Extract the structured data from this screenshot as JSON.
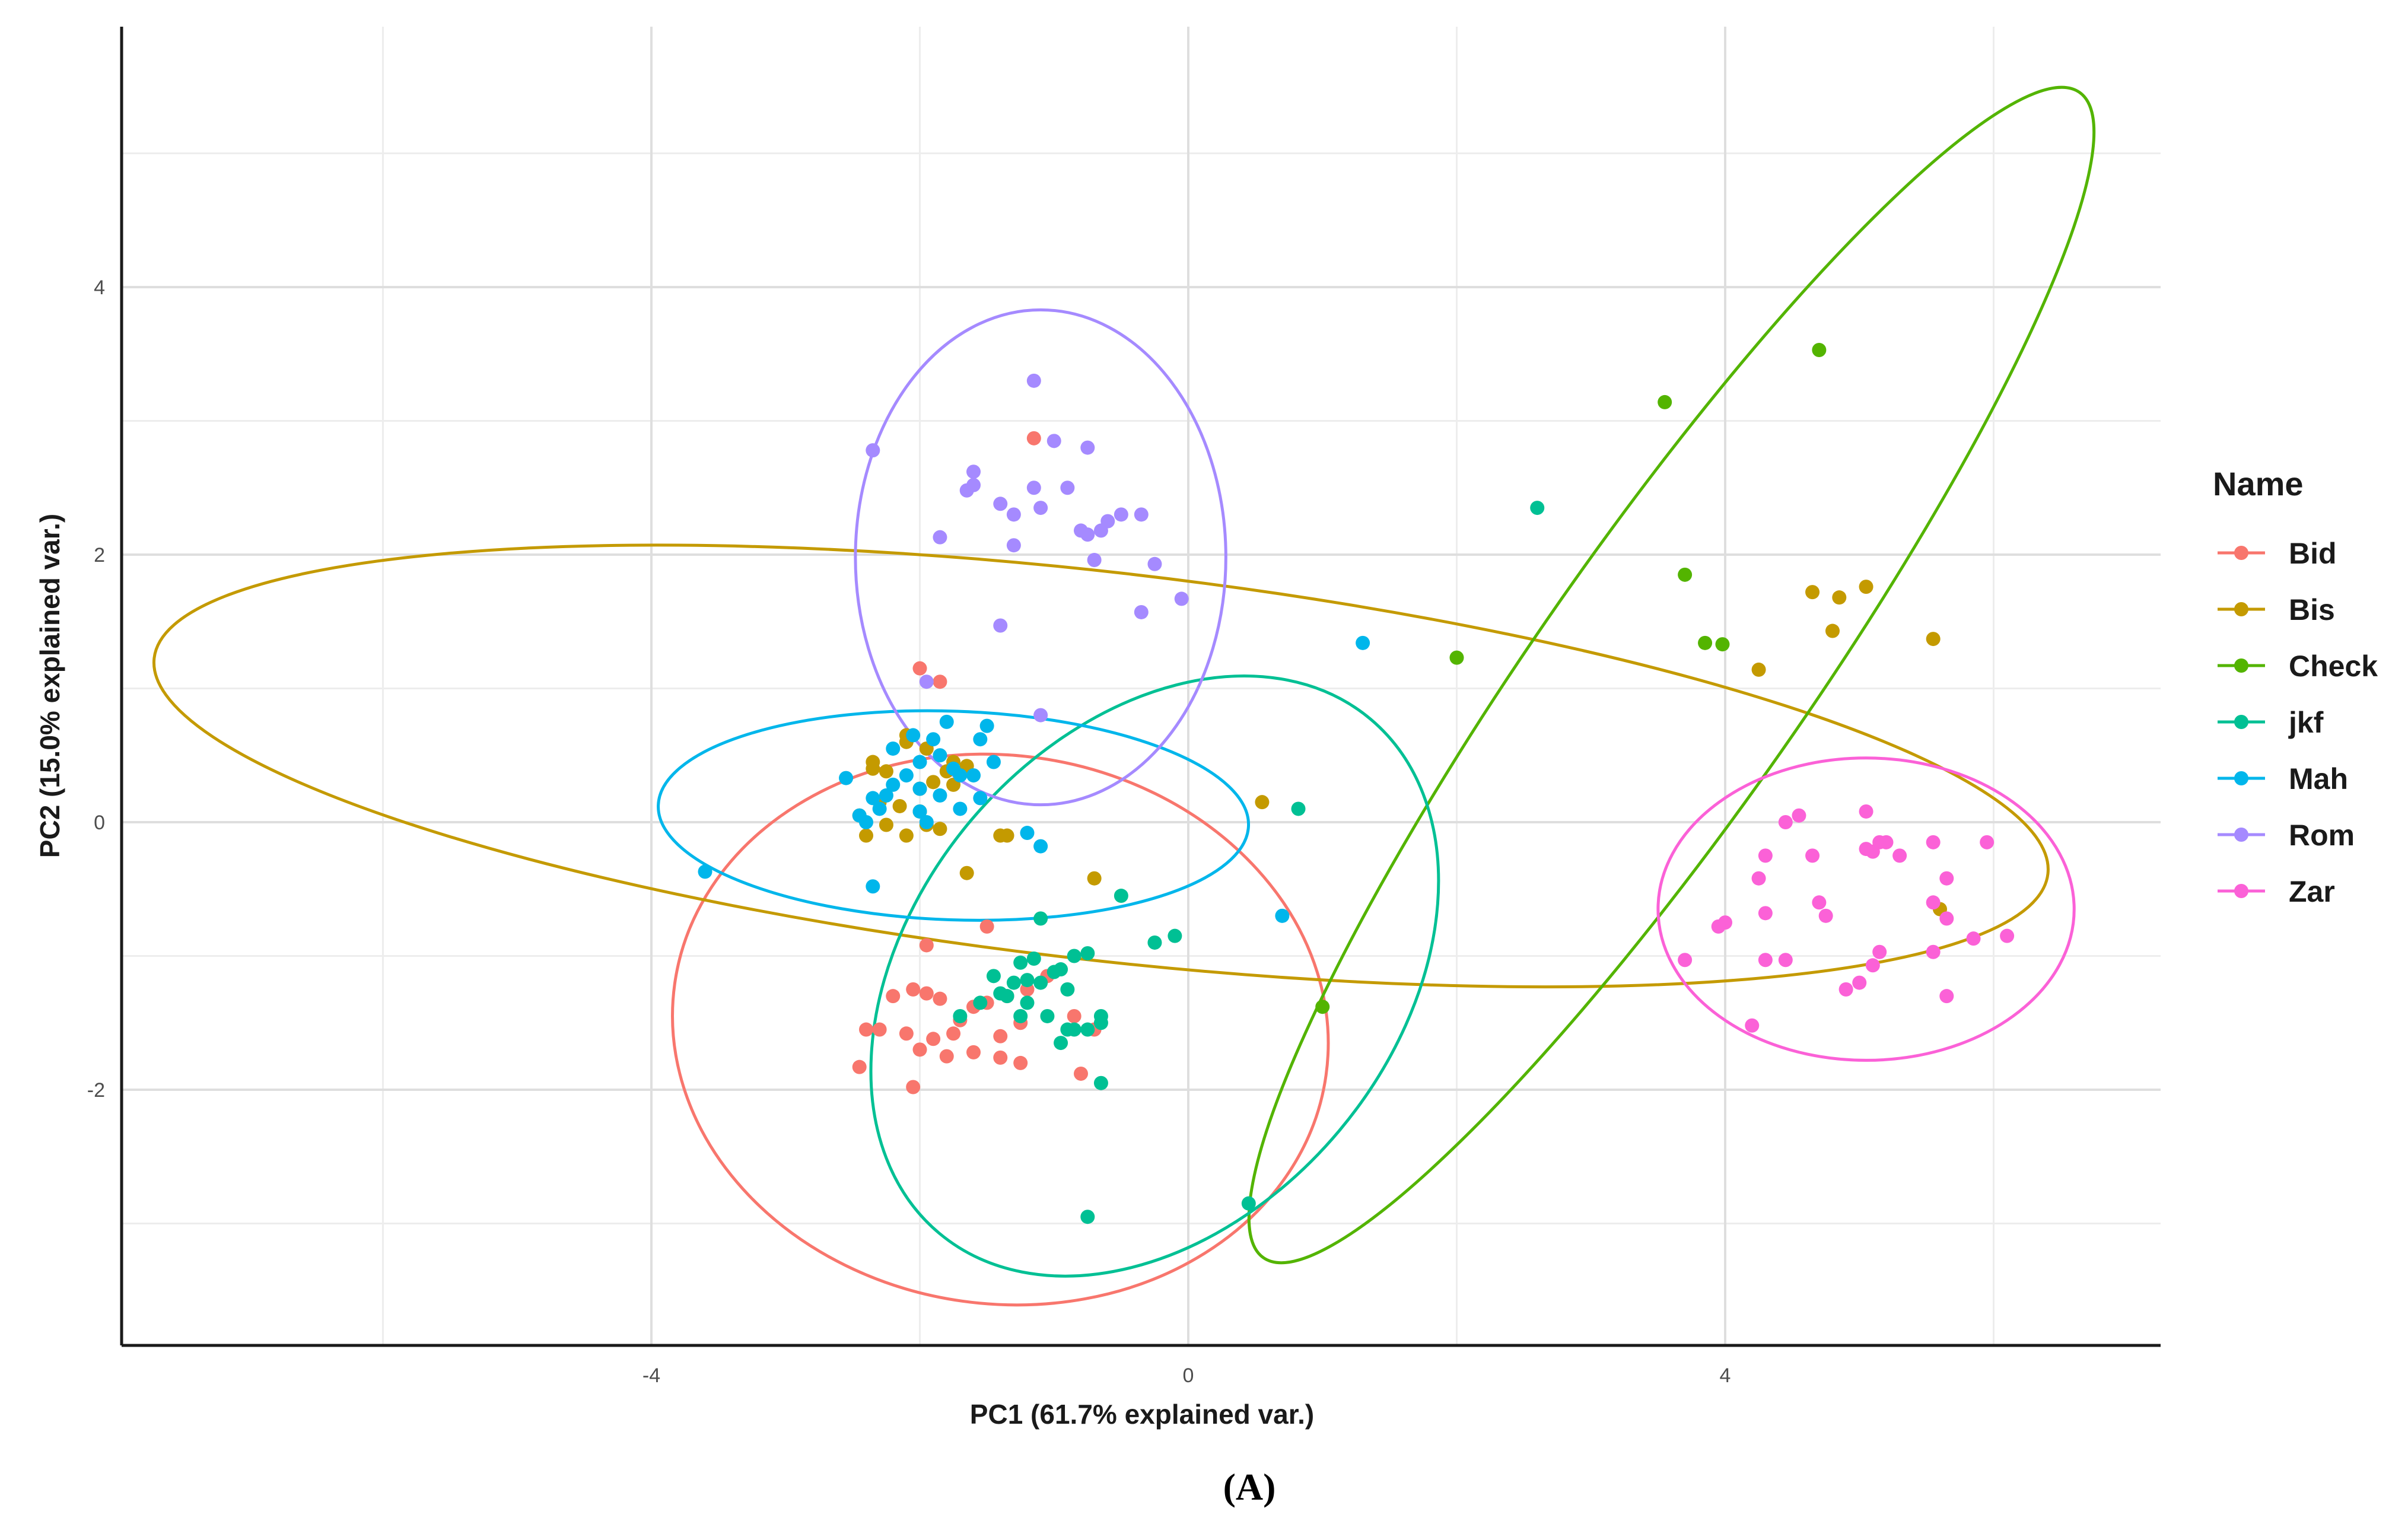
{
  "chart_data": {
    "type": "scatter",
    "subtype": "pca-biplot-with-confidence-ellipses",
    "xlabel": "PC1 (61.7% explained var.)",
    "ylabel": "PC2 (15.0% explained var.)",
    "caption": "(A)",
    "xlim": [
      -8.0,
      7.3
    ],
    "ylim": [
      -3.9,
      6.0
    ],
    "x_ticks": [
      -4,
      0,
      4
    ],
    "x_tick_labels": [
      "-4",
      "0",
      "4"
    ],
    "y_ticks": [
      -2,
      0,
      2,
      4
    ],
    "y_tick_labels": [
      "-2",
      "0",
      "2",
      "4"
    ],
    "x_minor_grid": [
      -6,
      -2,
      2,
      6
    ],
    "y_minor_grid": [
      -3,
      -1,
      1,
      3,
      5
    ],
    "grid": true,
    "legend_title": "Name",
    "legend_position": "right",
    "series": [
      {
        "name": "Bid",
        "color": "#F8766D",
        "ellipse": {
          "cx": -1.4,
          "cy": -1.55,
          "rx": 2.45,
          "ry": 2.05,
          "angle_deg": -8
        },
        "points": [
          [
            -1.15,
            2.87
          ],
          [
            -1.85,
            1.05
          ],
          [
            -2.0,
            1.15
          ],
          [
            -1.95,
            -0.92
          ],
          [
            -1.5,
            -0.78
          ],
          [
            -2.05,
            -1.25
          ],
          [
            -1.95,
            -1.28
          ],
          [
            -1.85,
            -1.32
          ],
          [
            -1.7,
            -1.48
          ],
          [
            -1.6,
            -1.38
          ],
          [
            -1.5,
            -1.35
          ],
          [
            -1.35,
            -1.3
          ],
          [
            -1.2,
            -1.25
          ],
          [
            -1.05,
            -1.15
          ],
          [
            -1.25,
            -1.5
          ],
          [
            -1.4,
            -1.6
          ],
          [
            -1.75,
            -1.58
          ],
          [
            -1.9,
            -1.62
          ],
          [
            -2.1,
            -1.58
          ],
          [
            -2.3,
            -1.55
          ],
          [
            -2.4,
            -1.55
          ],
          [
            -2.0,
            -1.7
          ],
          [
            -1.8,
            -1.75
          ],
          [
            -1.6,
            -1.72
          ],
          [
            -1.4,
            -1.76
          ],
          [
            -1.25,
            -1.8
          ],
          [
            -0.85,
            -1.45
          ],
          [
            -0.7,
            -1.55
          ],
          [
            -0.8,
            -1.88
          ],
          [
            -2.45,
            -1.83
          ],
          [
            -2.05,
            -1.98
          ],
          [
            -2.2,
            -1.3
          ]
        ]
      },
      {
        "name": "Bis",
        "color": "#C49A00",
        "ellipse": {
          "cx": -0.65,
          "cy": 0.42,
          "rx": 7.1,
          "ry": 1.45,
          "angle_deg": -6.5
        },
        "points": [
          [
            -2.35,
            0.45
          ],
          [
            -2.25,
            0.38
          ],
          [
            -2.1,
            0.6
          ],
          [
            -1.95,
            0.55
          ],
          [
            -1.8,
            0.38
          ],
          [
            -1.65,
            0.42
          ],
          [
            -2.0,
            0.25
          ],
          [
            -1.9,
            0.3
          ],
          [
            -1.75,
            0.28
          ],
          [
            -2.3,
            0.15
          ],
          [
            -2.15,
            0.12
          ],
          [
            -2.0,
            0.08
          ],
          [
            -2.45,
            0.05
          ],
          [
            -2.25,
            -0.02
          ],
          [
            -1.95,
            -0.02
          ],
          [
            -1.85,
            -0.05
          ],
          [
            -2.4,
            -0.1
          ],
          [
            -2.1,
            -0.1
          ],
          [
            -1.4,
            -0.1
          ],
          [
            -1.35,
            -0.1
          ],
          [
            -1.65,
            -0.38
          ],
          [
            -2.35,
            0.4
          ],
          [
            -2.1,
            0.65
          ],
          [
            -1.75,
            0.45
          ],
          [
            0.55,
            0.15
          ],
          [
            -0.7,
            -0.42
          ],
          [
            4.65,
            1.72
          ],
          [
            4.85,
            1.68
          ],
          [
            5.05,
            1.76
          ],
          [
            4.8,
            1.43
          ],
          [
            5.55,
            1.37
          ],
          [
            4.25,
            1.14
          ],
          [
            5.6,
            -0.65
          ]
        ]
      },
      {
        "name": "Check",
        "color": "#53B400",
        "ellipse": {
          "cx": 3.6,
          "cy": 1.1,
          "rx": 5.3,
          "ry": 1.0,
          "angle_deg": 55
        },
        "points": [
          [
            4.7,
            3.53
          ],
          [
            3.55,
            3.14
          ],
          [
            3.7,
            1.85
          ],
          [
            3.85,
            1.34
          ],
          [
            3.98,
            1.33
          ],
          [
            2.0,
            1.23
          ],
          [
            1.0,
            -1.38
          ]
        ]
      },
      {
        "name": "jkf",
        "color": "#00C094",
        "ellipse": {
          "cx": -0.25,
          "cy": -1.15,
          "rx": 2.5,
          "ry": 1.8,
          "angle_deg": 50
        },
        "points": [
          [
            2.6,
            2.35
          ],
          [
            0.82,
            0.1
          ],
          [
            -1.1,
            -0.72
          ],
          [
            -0.5,
            -0.55
          ],
          [
            -0.25,
            -0.9
          ],
          [
            -0.1,
            -0.85
          ],
          [
            -1.25,
            -1.05
          ],
          [
            -1.15,
            -1.02
          ],
          [
            -1.45,
            -1.15
          ],
          [
            -1.3,
            -1.2
          ],
          [
            -1.2,
            -1.18
          ],
          [
            -1.1,
            -1.2
          ],
          [
            -1.0,
            -1.12
          ],
          [
            -0.95,
            -1.1
          ],
          [
            -0.85,
            -1.0
          ],
          [
            -0.75,
            -0.98
          ],
          [
            -1.35,
            -1.3
          ],
          [
            -1.55,
            -1.35
          ],
          [
            -1.2,
            -1.35
          ],
          [
            -0.9,
            -1.25
          ],
          [
            -1.05,
            -1.45
          ],
          [
            -0.9,
            -1.55
          ],
          [
            -0.75,
            -1.55
          ],
          [
            -0.65,
            -1.5
          ],
          [
            -0.65,
            -1.45
          ],
          [
            -1.25,
            -1.45
          ],
          [
            -0.95,
            -1.65
          ],
          [
            -1.7,
            -1.45
          ],
          [
            -0.65,
            -1.95
          ],
          [
            -0.75,
            -2.95
          ],
          [
            0.45,
            -2.85
          ],
          [
            -0.85,
            -1.55
          ],
          [
            -1.4,
            -1.28
          ]
        ]
      },
      {
        "name": "Mah",
        "color": "#00B6EB",
        "ellipse": {
          "cx": -1.75,
          "cy": 0.05,
          "rx": 2.2,
          "ry": 0.78,
          "angle_deg": -2
        },
        "points": [
          [
            -1.8,
            0.75
          ],
          [
            -1.5,
            0.72
          ],
          [
            -2.05,
            0.65
          ],
          [
            -1.9,
            0.62
          ],
          [
            -1.55,
            0.62
          ],
          [
            -2.2,
            0.55
          ],
          [
            -1.85,
            0.5
          ],
          [
            -2.0,
            0.45
          ],
          [
            -1.75,
            0.4
          ],
          [
            -1.45,
            0.45
          ],
          [
            -1.7,
            0.35
          ],
          [
            -2.1,
            0.35
          ],
          [
            -2.55,
            0.33
          ],
          [
            -2.2,
            0.28
          ],
          [
            -2.0,
            0.25
          ],
          [
            -1.85,
            0.2
          ],
          [
            -1.55,
            0.18
          ],
          [
            -2.35,
            0.18
          ],
          [
            -2.25,
            0.2
          ],
          [
            -1.7,
            0.1
          ],
          [
            -2.0,
            0.08
          ],
          [
            -2.3,
            0.1
          ],
          [
            -2.45,
            0.05
          ],
          [
            -1.95,
            0.0
          ],
          [
            -2.4,
            0.0
          ],
          [
            -1.2,
            -0.08
          ],
          [
            -1.1,
            -0.18
          ],
          [
            -2.35,
            -0.48
          ],
          [
            -3.6,
            -0.37
          ],
          [
            1.3,
            1.34
          ],
          [
            0.7,
            -0.7
          ],
          [
            -1.6,
            0.35
          ]
        ]
      },
      {
        "name": "Rom",
        "color": "#A58AFF",
        "ellipse": {
          "cx": -1.1,
          "cy": 1.98,
          "rx": 1.38,
          "ry": 1.85,
          "angle_deg": 0
        },
        "points": [
          [
            -1.15,
            3.3
          ],
          [
            -2.35,
            2.78
          ],
          [
            -0.75,
            2.8
          ],
          [
            -1.0,
            2.85
          ],
          [
            -1.6,
            2.62
          ],
          [
            -1.65,
            2.48
          ],
          [
            -1.6,
            2.52
          ],
          [
            -1.15,
            2.5
          ],
          [
            -0.9,
            2.5
          ],
          [
            -1.4,
            2.38
          ],
          [
            -1.3,
            2.3
          ],
          [
            -1.1,
            2.35
          ],
          [
            -0.6,
            2.25
          ],
          [
            -0.5,
            2.3
          ],
          [
            -0.35,
            2.3
          ],
          [
            -0.65,
            2.18
          ],
          [
            -0.75,
            2.15
          ],
          [
            -0.8,
            2.18
          ],
          [
            -1.85,
            2.13
          ],
          [
            -1.3,
            2.07
          ],
          [
            -0.7,
            1.96
          ],
          [
            -0.25,
            1.93
          ],
          [
            -0.05,
            1.67
          ],
          [
            -0.35,
            1.57
          ],
          [
            -1.4,
            1.47
          ],
          [
            -1.1,
            0.8
          ],
          [
            -1.95,
            1.05
          ]
        ]
      },
      {
        "name": "Zar",
        "color": "#FB61D7",
        "ellipse": {
          "cx": 5.05,
          "cy": -0.65,
          "rx": 1.55,
          "ry": 1.13,
          "angle_deg": 0
        },
        "points": [
          [
            5.05,
            0.08
          ],
          [
            4.55,
            0.05
          ],
          [
            4.45,
            0.0
          ],
          [
            5.15,
            -0.15
          ],
          [
            5.2,
            -0.15
          ],
          [
            5.1,
            -0.22
          ],
          [
            5.05,
            -0.2
          ],
          [
            5.55,
            -0.15
          ],
          [
            5.95,
            -0.15
          ],
          [
            4.3,
            -0.25
          ],
          [
            4.65,
            -0.25
          ],
          [
            5.3,
            -0.25
          ],
          [
            4.25,
            -0.42
          ],
          [
            5.65,
            -0.42
          ],
          [
            4.7,
            -0.6
          ],
          [
            5.55,
            -0.6
          ],
          [
            4.75,
            -0.7
          ],
          [
            4.3,
            -0.68
          ],
          [
            5.65,
            -0.72
          ],
          [
            4.0,
            -0.75
          ],
          [
            3.95,
            -0.78
          ],
          [
            5.85,
            -0.87
          ],
          [
            6.1,
            -0.85
          ],
          [
            5.15,
            -0.97
          ],
          [
            5.55,
            -0.97
          ],
          [
            3.7,
            -1.03
          ],
          [
            4.3,
            -1.03
          ],
          [
            4.45,
            -1.03
          ],
          [
            5.1,
            -1.07
          ],
          [
            5.0,
            -1.2
          ],
          [
            4.9,
            -1.25
          ],
          [
            5.65,
            -1.3
          ],
          [
            4.2,
            -1.52
          ]
        ]
      }
    ]
  }
}
